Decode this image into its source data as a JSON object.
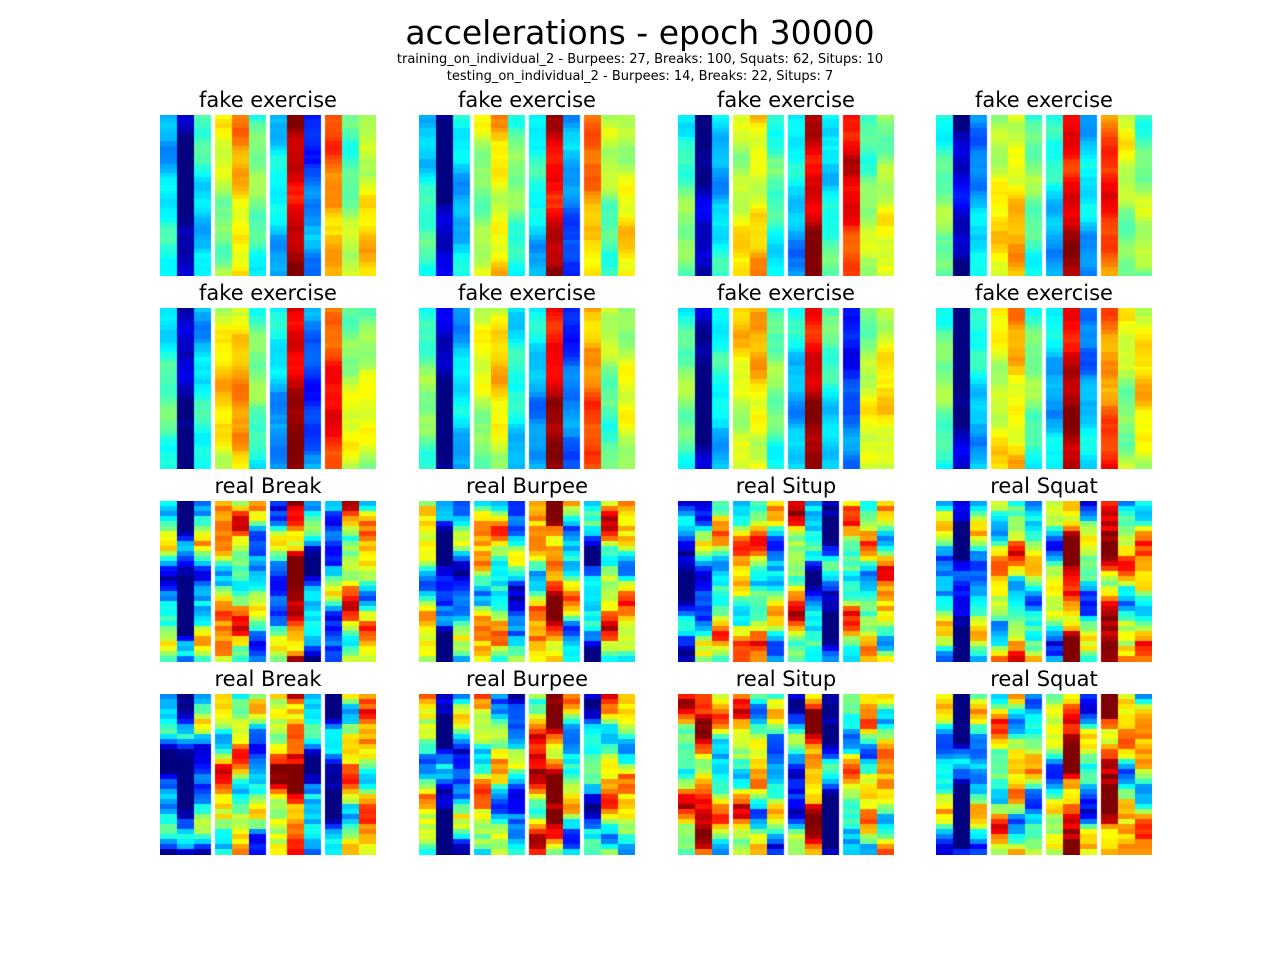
{
  "title": "accelerations - epoch 30000",
  "subtitle_lines": [
    "training_on_individual_2 - Burpees: 27, Breaks: 100, Squats: 62, Situps: 10",
    "testing_on_individual_2 - Burpees: 14, Breaks: 22, Situps: 7"
  ],
  "chart_data": {
    "type": "heatmap",
    "colormap": "jet",
    "grid": false,
    "axes_visible": false,
    "layout": {
      "rows": 4,
      "cols": 4
    },
    "columns_per_panel": 12,
    "column_groups": [
      3,
      3,
      3,
      3
    ],
    "panels": [
      {
        "title": "fake exercise",
        "kind": "fake",
        "columns": [
          0.35,
          0.02,
          0.38,
          0.55,
          0.68,
          0.45,
          0.32,
          0.95,
          0.22,
          0.75,
          0.5,
          0.62
        ]
      },
      {
        "title": "fake exercise",
        "kind": "fake",
        "columns": [
          0.38,
          0.02,
          0.35,
          0.55,
          0.65,
          0.45,
          0.35,
          0.92,
          0.25,
          0.72,
          0.5,
          0.6
        ]
      },
      {
        "title": "fake exercise",
        "kind": "fake",
        "columns": [
          0.45,
          0.02,
          0.35,
          0.6,
          0.65,
          0.4,
          0.32,
          0.95,
          0.4,
          0.85,
          0.5,
          0.55
        ]
      },
      {
        "title": "fake exercise",
        "kind": "fake",
        "columns": [
          0.45,
          0.05,
          0.3,
          0.6,
          0.65,
          0.45,
          0.35,
          0.92,
          0.3,
          0.8,
          0.55,
          0.5
        ]
      },
      {
        "title": "fake exercise",
        "kind": "fake",
        "columns": [
          0.4,
          0.02,
          0.35,
          0.62,
          0.68,
          0.45,
          0.32,
          0.95,
          0.22,
          0.82,
          0.55,
          0.55
        ]
      },
      {
        "title": "fake exercise",
        "kind": "fake",
        "columns": [
          0.45,
          0.02,
          0.3,
          0.55,
          0.62,
          0.35,
          0.32,
          0.92,
          0.2,
          0.75,
          0.5,
          0.55
        ]
      },
      {
        "title": "fake exercise",
        "kind": "fake",
        "columns": [
          0.45,
          0.02,
          0.35,
          0.62,
          0.65,
          0.45,
          0.35,
          0.92,
          0.4,
          0.2,
          0.55,
          0.6
        ]
      },
      {
        "title": "fake exercise",
        "kind": "fake",
        "columns": [
          0.45,
          0.02,
          0.35,
          0.62,
          0.68,
          0.45,
          0.35,
          0.92,
          0.3,
          0.78,
          0.55,
          0.62
        ]
      },
      {
        "title": "real Break",
        "kind": "real",
        "columns": [
          0.35,
          0.02,
          0.38,
          0.62,
          0.6,
          0.38,
          0.32,
          0.9,
          0.22,
          0.3,
          0.65,
          0.55
        ]
      },
      {
        "title": "real Burpee",
        "kind": "real",
        "columns": [
          0.5,
          0.05,
          0.3,
          0.58,
          0.5,
          0.3,
          0.6,
          0.85,
          0.45,
          0.25,
          0.62,
          0.58
        ]
      },
      {
        "title": "real Situp",
        "kind": "real",
        "columns": [
          0.08,
          0.3,
          0.5,
          0.6,
          0.55,
          0.4,
          0.65,
          0.25,
          0.12,
          0.55,
          0.5,
          0.62
        ]
      },
      {
        "title": "real Squat",
        "kind": "real",
        "columns": [
          0.4,
          0.02,
          0.4,
          0.55,
          0.55,
          0.45,
          0.45,
          0.9,
          0.4,
          0.85,
          0.55,
          0.6
        ]
      },
      {
        "title": "real Break",
        "kind": "real",
        "columns": [
          0.2,
          0.05,
          0.3,
          0.62,
          0.6,
          0.38,
          0.7,
          0.88,
          0.22,
          0.1,
          0.6,
          0.62
        ]
      },
      {
        "title": "real Burpee",
        "kind": "real",
        "columns": [
          0.5,
          0.05,
          0.3,
          0.58,
          0.5,
          0.3,
          0.75,
          0.88,
          0.45,
          0.3,
          0.6,
          0.55
        ]
      },
      {
        "title": "real Situp",
        "kind": "real",
        "columns": [
          0.6,
          0.8,
          0.5,
          0.6,
          0.55,
          0.4,
          0.25,
          0.8,
          0.12,
          0.5,
          0.55,
          0.62
        ]
      },
      {
        "title": "real Squat",
        "kind": "real",
        "columns": [
          0.4,
          0.02,
          0.4,
          0.55,
          0.55,
          0.45,
          0.45,
          0.9,
          0.4,
          0.9,
          0.55,
          0.6
        ]
      }
    ]
  }
}
